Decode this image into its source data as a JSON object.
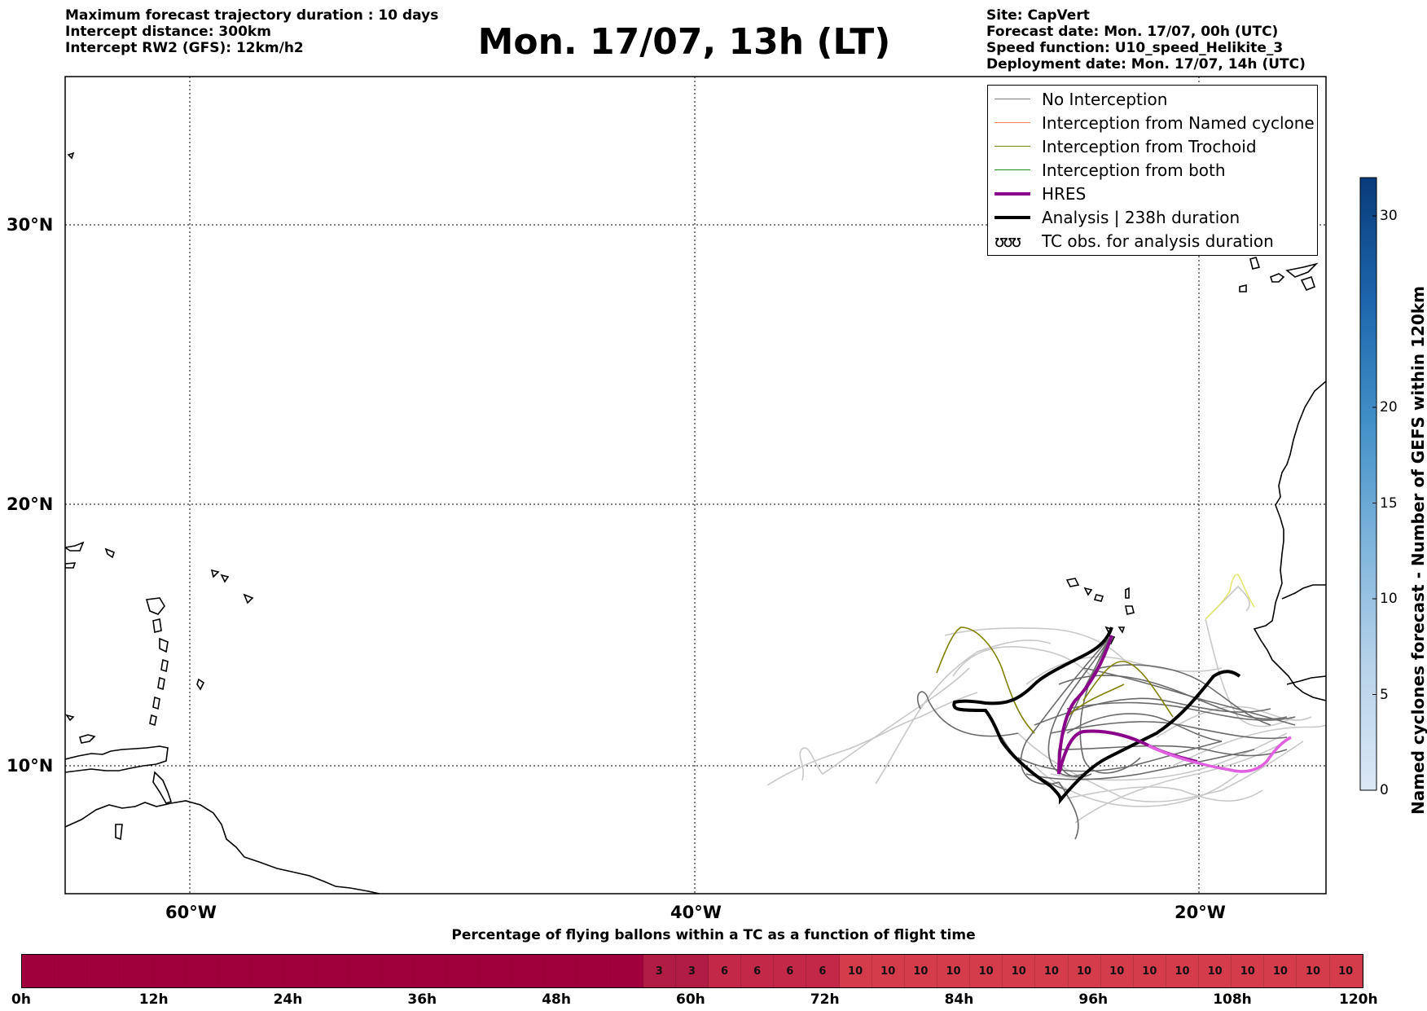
{
  "header": {
    "left_lines": [
      "Maximum forecast trajectory duration : 10 days",
      "Intercept distance: 300km",
      "Intercept RW2 (GFS):  12km/h2"
    ],
    "title": "Mon. 17/07, 13h (LT)",
    "right_lines": [
      "Site: CapVert",
      "Forecast date: Mon. 17/07, 00h (UTC)",
      "Speed function: U10_speed_Helikite_3",
      "Deployment date: Mon. 17/07, 14h (UTC)"
    ]
  },
  "map": {
    "lat_labels": [
      "30°N",
      "20°N",
      "10°N"
    ],
    "lon_labels": [
      "60°W",
      "40°W",
      "20°W"
    ],
    "colors": {
      "no_interception": "#808080",
      "named_cyclone": "#ff7f50",
      "trochoid": "#808000",
      "both": "#228b22",
      "hres": "#8b008b",
      "analysis": "#000000",
      "ensemble_light": "#c8c8c8",
      "ensemble_dark": "#6a6a6a",
      "hres_tail": "#e060e0",
      "coast": "#000000"
    }
  },
  "legend": {
    "items": [
      {
        "label": "No Interception",
        "color": "#808080",
        "width": 1.5
      },
      {
        "label": "Interception from Named cyclone",
        "color": "#ff7f50",
        "width": 1.5
      },
      {
        "label": "Interception from Trochoid",
        "color": "#808000",
        "width": 1.5
      },
      {
        "label": "Interception from both",
        "color": "#228b22",
        "width": 1.5
      },
      {
        "label": "HRES",
        "color": "#8b008b",
        "width": 4
      },
      {
        "label": "Analysis | 238h duration",
        "color": "#000000",
        "width": 4
      }
    ],
    "tc_symbol": "ʊʊʊ",
    "tc_label": "TC obs. for analysis duration"
  },
  "colorbar": {
    "title": "Named cyclones forecast - Number of GEFS within 120km",
    "ticks": [
      "0",
      "5",
      "10",
      "15",
      "20",
      "30"
    ],
    "tick_values": [
      0,
      5,
      10,
      15,
      20,
      30
    ],
    "range": [
      0,
      32
    ]
  },
  "bottom_bar": {
    "title": "Percentage of flying ballons within a TC as a function of flight time",
    "cells": [
      "",
      "",
      "",
      "",
      "",
      "",
      "",
      "",
      "",
      "",
      "",
      "",
      "",
      "",
      "",
      "",
      "",
      "",
      "",
      "3",
      "3",
      "6",
      "6",
      "6",
      "6",
      "10",
      "10",
      "10",
      "10",
      "10",
      "10",
      "10",
      "10",
      "10",
      "10",
      "10",
      "10",
      "10",
      "10",
      "10",
      "10"
    ],
    "time_labels": [
      "0h",
      "12h",
      "24h",
      "36h",
      "48h",
      "60h",
      "72h",
      "84h",
      "96h",
      "108h",
      "120h"
    ],
    "color_zero": "#a0003c",
    "color_low": "#b01c44",
    "color_mid": "#c42848",
    "color_high": "#d43c4c"
  }
}
